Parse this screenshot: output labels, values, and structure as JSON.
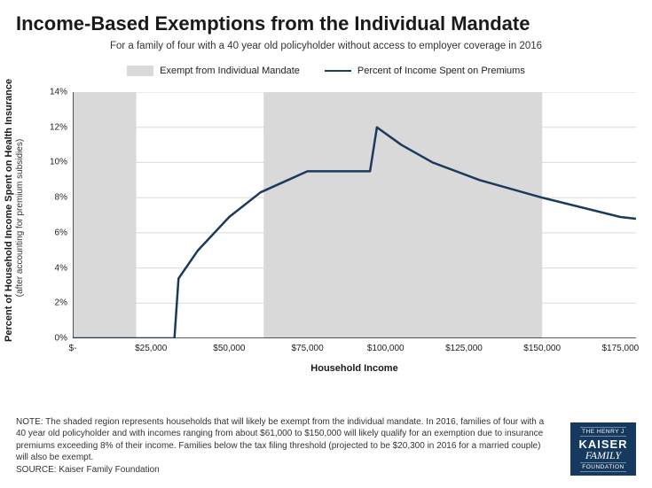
{
  "title": "Income-Based Exemptions from the Individual Mandate",
  "subtitle": "For a family of four with a 40 year old policyholder without access to employer coverage in 2016",
  "legend": {
    "exempt": "Exempt from Individual Mandate",
    "line": "Percent of Income Spent on Premiums"
  },
  "yAxis": {
    "label": "Percent of Household Income Spent on Health Insurance",
    "sublabel": "(after accounting for premium subsidies)",
    "min": 0,
    "max": 14,
    "step": 2,
    "ticks": [
      "0%",
      "2%",
      "4%",
      "6%",
      "8%",
      "10%",
      "12%",
      "14%"
    ]
  },
  "xAxis": {
    "label": "Household Income",
    "min": 0,
    "max": 180000,
    "ticks": [
      {
        "v": 0,
        "label": "$-"
      },
      {
        "v": 25000,
        "label": "$25,000"
      },
      {
        "v": 50000,
        "label": "$50,000"
      },
      {
        "v": 75000,
        "label": "$75,000"
      },
      {
        "v": 100000,
        "label": "$100,000"
      },
      {
        "v": 125000,
        "label": "$125,000"
      },
      {
        "v": 150000,
        "label": "$150,000"
      },
      {
        "v": 175000,
        "label": "$175,000"
      }
    ]
  },
  "exemptBands": [
    {
      "from": 0,
      "to": 20300
    },
    {
      "from": 61000,
      "to": 150000
    }
  ],
  "series": {
    "color": "#1b3a5c",
    "width": 2.5,
    "points": [
      {
        "x": 0,
        "y": 0
      },
      {
        "x": 32500,
        "y": 0
      },
      {
        "x": 33800,
        "y": 3.4
      },
      {
        "x": 40000,
        "y": 5.0
      },
      {
        "x": 50000,
        "y": 6.9
      },
      {
        "x": 60000,
        "y": 8.3
      },
      {
        "x": 70000,
        "y": 9.1
      },
      {
        "x": 75000,
        "y": 9.5
      },
      {
        "x": 95000,
        "y": 9.5
      },
      {
        "x": 97200,
        "y": 12.0
      },
      {
        "x": 105000,
        "y": 11.0
      },
      {
        "x": 115000,
        "y": 10.0
      },
      {
        "x": 130000,
        "y": 9.0
      },
      {
        "x": 150000,
        "y": 8.0
      },
      {
        "x": 175000,
        "y": 6.9
      },
      {
        "x": 180000,
        "y": 6.8
      }
    ]
  },
  "style": {
    "bandColor": "#d9d9d9",
    "axisColor": "#262626",
    "gridColor": "#d9d9d9",
    "bg": "#ffffff"
  },
  "note": "NOTE: The shaded region represents households that will likely be exempt from the individual mandate. In 2016, families of four with a 40 year old policyholder and with incomes ranging from about $61,000 to $150,000 will likely qualify for an exemption due to insurance premiums exceeding 8% of their income. Families below the tax filing threshold (projected to be $20,300 in 2016 for a married couple) will also be exempt.",
  "source": "SOURCE: Kaiser Family Foundation",
  "logo": {
    "l1": "THE HENRY J",
    "l2": "KAISER",
    "l3": "FAMILY",
    "l4": "FOUNDATION"
  }
}
